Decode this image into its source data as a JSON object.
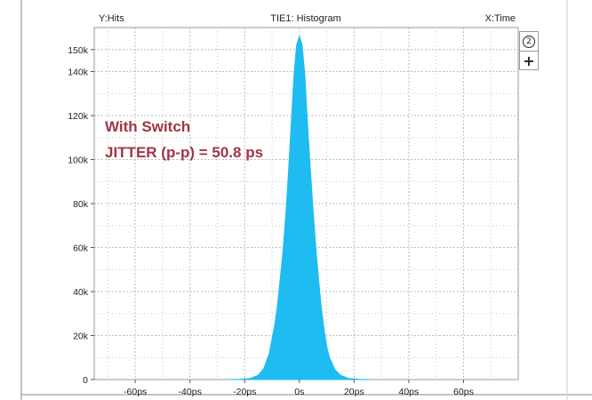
{
  "chart_data": {
    "type": "area",
    "title": "TIE1: Histogram",
    "ylabel": "Y:Hits",
    "xlabel": "X:Time",
    "xlim": [
      -75,
      80
    ],
    "ylim": [
      0,
      160000
    ],
    "xticks": [
      {
        "value": -60,
        "label": "-60ps"
      },
      {
        "value": -40,
        "label": "-40ps"
      },
      {
        "value": -20,
        "label": "-20ps"
      },
      {
        "value": 0,
        "label": "0s"
      },
      {
        "value": 20,
        "label": "20ps"
      },
      {
        "value": 40,
        "label": "40ps"
      },
      {
        "value": 60,
        "label": "60ps"
      }
    ],
    "yticks": [
      {
        "value": 0,
        "label": "0"
      },
      {
        "value": 20000,
        "label": "20k"
      },
      {
        "value": 40000,
        "label": "40k"
      },
      {
        "value": 60000,
        "label": "60k"
      },
      {
        "value": 80000,
        "label": "80k"
      },
      {
        "value": 100000,
        "label": "100k"
      },
      {
        "value": 120000,
        "label": "120k"
      },
      {
        "value": 140000,
        "label": "140k"
      },
      {
        "value": 150000,
        "label": "150k"
      }
    ],
    "grid": true,
    "series": [
      {
        "color": "#1EBCF0",
        "x": [
          -26,
          -22,
          -18,
          -15,
          -13,
          -11,
          -9,
          -8,
          -7,
          -6,
          -5,
          -4,
          -3,
          -2,
          -1,
          0,
          1,
          2,
          3,
          4,
          5,
          6,
          7,
          8,
          9,
          10,
          11,
          13,
          15,
          18,
          22,
          26
        ],
        "y": [
          0,
          100,
          500,
          2000,
          5000,
          12000,
          25000,
          34000,
          46000,
          58000,
          74000,
          94000,
          116000,
          138000,
          152000,
          156000,
          152000,
          138000,
          116000,
          96000,
          77000,
          60000,
          46000,
          33000,
          23000,
          15000,
          10000,
          4500,
          2000,
          500,
          100,
          0
        ]
      }
    ],
    "annotations": [
      {
        "text": "With Switch",
        "color": "#A13544"
      },
      {
        "text": "JITTER (p-p) = 50.8 ps",
        "color": "#A13544"
      }
    ]
  },
  "controls": {
    "zoom_label": "2",
    "add_label": "+"
  }
}
